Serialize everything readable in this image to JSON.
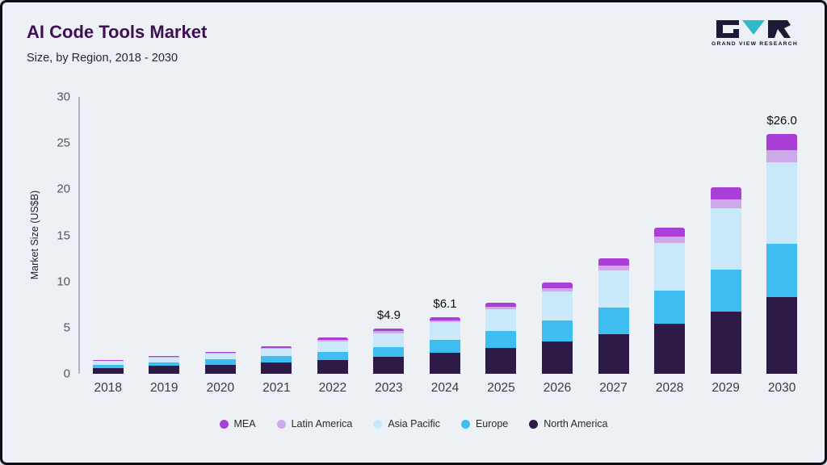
{
  "header": {
    "title": "AI Code Tools Market",
    "subtitle": "Size, by Region, 2018 - 2030"
  },
  "logo": {
    "text": "GRAND VIEW RESEARCH",
    "dark_color": "#1b1b35",
    "accent_color": "#2fb9cb"
  },
  "chart_data": {
    "type": "bar",
    "stacked": true,
    "title": "AI Code Tools Market Size, by Region, 2018 - 2030",
    "ylabel": "Market Size (US$B)",
    "ylim": [
      0,
      30
    ],
    "yticks": [
      0,
      5,
      10,
      15,
      20,
      25,
      30
    ],
    "grid": false,
    "legend_position": "bottom",
    "categories": [
      "2018",
      "2019",
      "2020",
      "2021",
      "2022",
      "2023",
      "2024",
      "2025",
      "2026",
      "2027",
      "2028",
      "2029",
      "2030"
    ],
    "series": [
      {
        "name": "North America",
        "color": "#2e1a47",
        "values": [
          0.65,
          0.85,
          1.0,
          1.2,
          1.5,
          1.8,
          2.3,
          2.8,
          3.5,
          4.3,
          5.4,
          6.7,
          8.3
        ]
      },
      {
        "name": "Europe",
        "color": "#3ebef0",
        "values": [
          0.35,
          0.4,
          0.55,
          0.7,
          0.9,
          1.1,
          1.4,
          1.8,
          2.3,
          2.9,
          3.6,
          4.6,
          5.8
        ]
      },
      {
        "name": "Asia Pacific",
        "color": "#c9e9fa",
        "values": [
          0.4,
          0.5,
          0.65,
          0.8,
          1.1,
          1.5,
          1.9,
          2.4,
          3.1,
          4.0,
          5.2,
          6.6,
          8.8
        ]
      },
      {
        "name": "Latin America",
        "color": "#cda9e9",
        "values": [
          0.04,
          0.06,
          0.08,
          0.1,
          0.15,
          0.2,
          0.2,
          0.3,
          0.4,
          0.5,
          0.7,
          1.0,
          1.3
        ]
      },
      {
        "name": "MEA",
        "color": "#a93fd6",
        "values": [
          0.06,
          0.09,
          0.12,
          0.2,
          0.25,
          0.3,
          0.3,
          0.4,
          0.6,
          0.8,
          0.9,
          1.3,
          1.8
        ]
      }
    ],
    "annotations": {
      "2023": "$4.9",
      "2024": "$6.1",
      "2030": "$26.0"
    }
  }
}
